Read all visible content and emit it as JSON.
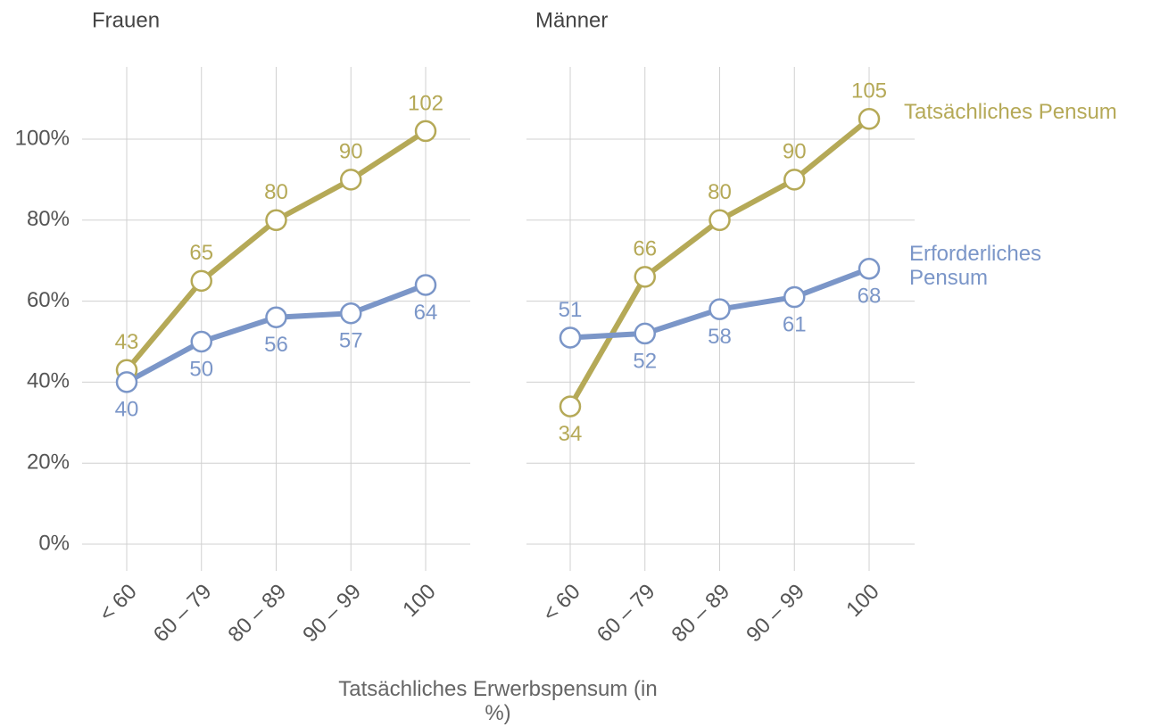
{
  "chart_data": [
    {
      "type": "line",
      "title": "Frauen",
      "categories": [
        "< 60",
        "60 – 79",
        "80 – 89",
        "90 – 99",
        "100"
      ],
      "series": [
        {
          "name": "Tatsächliches Pensum",
          "color": "#b5a957",
          "values": [
            43,
            65,
            80,
            90,
            102
          ]
        },
        {
          "name": "Erforderliches Pensum",
          "color": "#7b96c8",
          "values": [
            40,
            50,
            56,
            57,
            64
          ]
        }
      ],
      "ylim": [
        -7,
        118
      ],
      "yticks": [
        {
          "value": 0,
          "label": "0%"
        },
        {
          "value": 20,
          "label": "20%"
        },
        {
          "value": 40,
          "label": "40%"
        },
        {
          "value": 60,
          "label": "60%"
        },
        {
          "value": 80,
          "label": "80%"
        },
        {
          "value": 100,
          "label": "100%"
        }
      ],
      "grid": true
    },
    {
      "type": "line",
      "title": "Männer",
      "categories": [
        "< 60",
        "60 – 79",
        "80 – 89",
        "90 – 99",
        "100"
      ],
      "series": [
        {
          "name": "Tatsächliches Pensum",
          "color": "#b5a957",
          "values": [
            34,
            66,
            80,
            90,
            105
          ]
        },
        {
          "name": "Erforderliches Pensum",
          "color": "#7b96c8",
          "values": [
            51,
            52,
            58,
            61,
            68
          ]
        }
      ],
      "ylim": [
        -7,
        118
      ],
      "yticks": [
        0,
        20,
        40,
        60,
        80,
        100
      ],
      "grid": true
    }
  ],
  "xlabel": "Tatsächliches Erwerbspensum (in %)"
}
